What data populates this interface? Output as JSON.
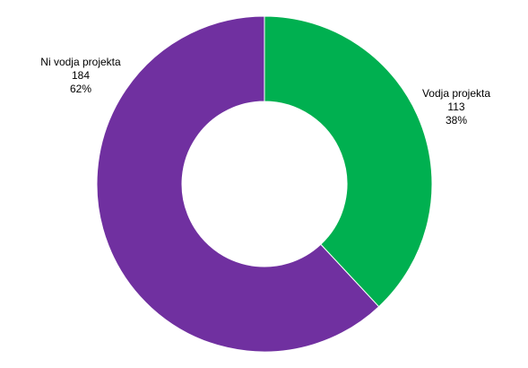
{
  "chart_data": {
    "type": "donut",
    "categories": [
      "Vodja projekta",
      "Ni vodja projekta"
    ],
    "values": [
      113,
      184
    ],
    "shares": [
      {
        "value": 38,
        "label": "38%"
      },
      {
        "value": 62,
        "label": "62%"
      }
    ],
    "colors": [
      "#00b050",
      "#7030a0"
    ]
  }
}
